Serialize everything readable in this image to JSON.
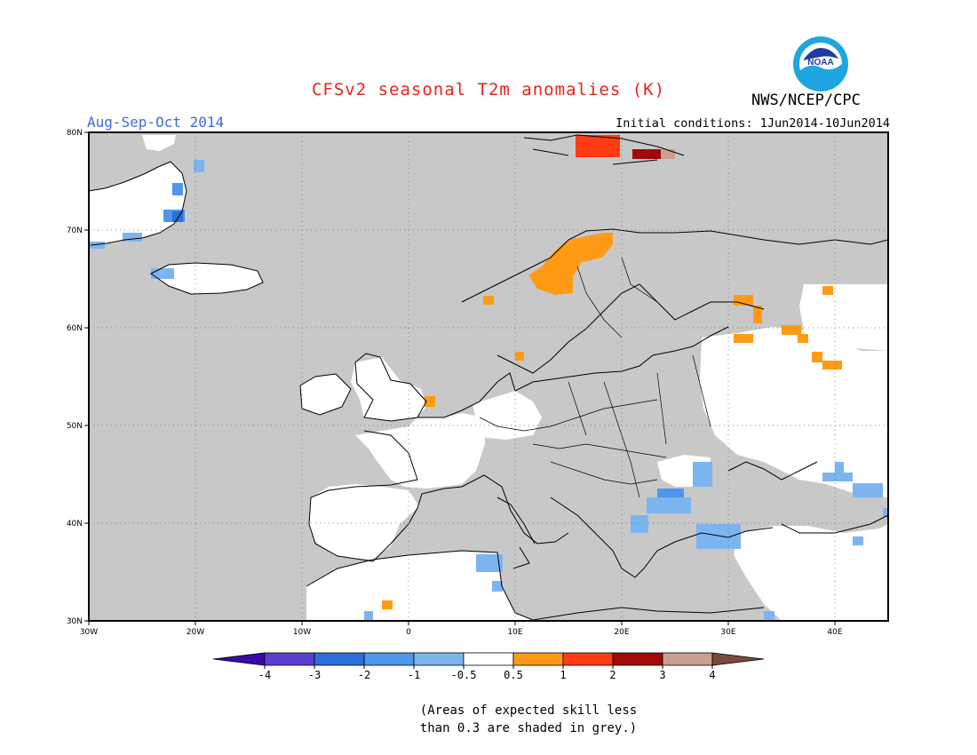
{
  "header": {
    "title": "CFSv2 seasonal T2m anomalies (K)",
    "season": "Aug-Sep-Oct 2014",
    "initial_conditions": "Initial conditions: 1Jun2014-10Jun2014",
    "agency": "NWS/NCEP/CPC",
    "logo_text": "NOAA"
  },
  "map": {
    "region": "Europe",
    "lon_range": [
      -30,
      45
    ],
    "lat_range": [
      30,
      80
    ],
    "lat_labels": [
      "80N",
      "70N",
      "60N",
      "50N",
      "40N",
      "30N"
    ],
    "lon_labels": [
      "30W",
      "20W",
      "10W",
      "0",
      "10E",
      "20E",
      "30E",
      "40E"
    ],
    "grid": "dotted",
    "colors": {
      "skill_grey": "#c8c8c8",
      "land_white": "#ffffff",
      "coastline": "#000000"
    }
  },
  "colorbar": {
    "tick_labels": [
      "-4",
      "-3",
      "-2",
      "-1",
      "-0.5",
      "0.5",
      "1",
      "2",
      "3",
      "4"
    ],
    "colors": [
      "#3a0aa8",
      "#5a3fd0",
      "#2c6fd8",
      "#4f95ec",
      "#7cb4f0",
      "#ffffff",
      "#ff9a14",
      "#ff3c14",
      "#a00a0a",
      "#c8a090",
      "#7a4a3a"
    ]
  },
  "note": {
    "line1": "(Areas of expected skill less",
    "line2": "than 0.3 are shaded in grey.)"
  }
}
